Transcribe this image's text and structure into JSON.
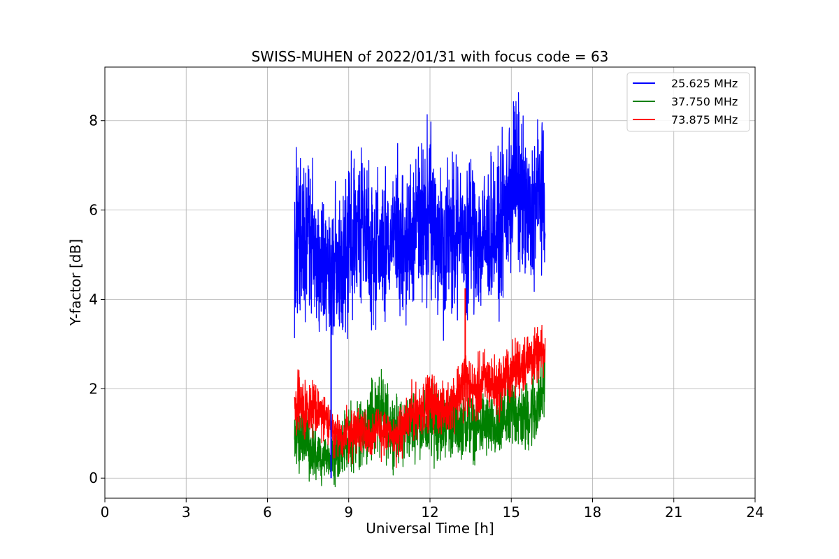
{
  "chart_data": {
    "type": "line",
    "title": "SWISS-MUHEN of 2022/01/31 with focus code = 63",
    "xlabel": "Universal Time [h]",
    "ylabel": "Y-factor [dB]",
    "xlim": [
      0,
      24
    ],
    "ylim": [
      -0.45,
      9.2
    ],
    "xticks": [
      0,
      3,
      6,
      9,
      12,
      15,
      18,
      21,
      24
    ],
    "xtick_labels": [
      "0",
      "3",
      "6",
      "9",
      "12",
      "15",
      "18",
      "21",
      "24"
    ],
    "yticks": [
      0,
      2,
      4,
      6,
      8
    ],
    "ytick_labels": [
      "0",
      "2",
      "4",
      "6",
      "8"
    ],
    "grid": true,
    "legend_position": "top-right",
    "series": [
      {
        "name": "25.625 MHz",
        "color": "#0000ff",
        "x": [
          7.0,
          7.2,
          7.4,
          7.6,
          7.8,
          8.0,
          8.2,
          8.35,
          8.5,
          8.7,
          8.9,
          9.1,
          9.3,
          9.5,
          9.7,
          9.9,
          10.1,
          10.3,
          10.5,
          10.7,
          10.9,
          11.1,
          11.3,
          11.5,
          11.7,
          11.9,
          12.1,
          12.3,
          12.5,
          12.7,
          12.9,
          13.1,
          13.3,
          13.5,
          13.7,
          13.9,
          14.1,
          14.3,
          14.5,
          14.7,
          14.9,
          15.1,
          15.3,
          15.5,
          15.7,
          15.9,
          16.1,
          16.25
        ],
        "y": [
          5.2,
          5.5,
          5.0,
          5.6,
          4.8,
          5.1,
          4.6,
          4.4,
          4.9,
          4.7,
          5.0,
          5.4,
          5.6,
          5.9,
          5.3,
          5.1,
          5.5,
          4.9,
          5.2,
          5.6,
          5.3,
          4.9,
          5.4,
          5.6,
          5.8,
          6.0,
          5.7,
          5.4,
          5.2,
          5.5,
          5.6,
          5.4,
          5.3,
          5.7,
          5.5,
          5.2,
          5.4,
          5.6,
          5.4,
          5.8,
          6.2,
          6.8,
          6.5,
          6.0,
          5.6,
          6.2,
          6.5,
          5.5
        ],
        "amp": [
          1.5,
          1.6,
          1.4,
          1.5,
          1.3,
          1.5,
          1.4,
          1.3,
          1.4,
          1.5,
          1.4,
          1.5,
          1.6,
          1.7,
          1.6,
          1.5,
          1.6,
          1.5,
          1.4,
          1.5,
          1.5,
          1.4,
          1.5,
          1.6,
          1.7,
          1.8,
          1.6,
          1.6,
          1.5,
          1.5,
          1.6,
          1.5,
          1.4,
          1.5,
          1.6,
          1.5,
          1.5,
          1.5,
          1.4,
          1.5,
          1.7,
          1.8,
          1.7,
          1.6,
          1.5,
          1.6,
          1.6,
          1.3
        ]
      },
      {
        "name": "37.750 MHz",
        "color": "#008000",
        "x": [
          7.0,
          7.2,
          7.4,
          7.6,
          7.8,
          8.0,
          8.2,
          8.35,
          8.5,
          8.7,
          8.9,
          9.1,
          9.3,
          9.5,
          9.7,
          9.9,
          10.1,
          10.3,
          10.5,
          10.7,
          10.9,
          11.1,
          11.3,
          11.5,
          11.7,
          11.9,
          12.1,
          12.3,
          12.5,
          12.7,
          12.9,
          13.1,
          13.3,
          13.5,
          13.7,
          13.9,
          14.1,
          14.3,
          14.5,
          14.7,
          14.9,
          15.1,
          15.3,
          15.5,
          15.7,
          15.9,
          16.1,
          16.25
        ],
        "y": [
          1.0,
          0.9,
          0.8,
          0.7,
          0.6,
          0.5,
          0.5,
          0.4,
          0.5,
          0.6,
          0.8,
          0.9,
          1.0,
          1.1,
          1.2,
          1.3,
          1.4,
          1.3,
          1.2,
          1.1,
          1.0,
          1.1,
          1.2,
          1.3,
          1.2,
          1.1,
          1.2,
          1.3,
          1.2,
          1.3,
          1.2,
          1.2,
          1.3,
          1.2,
          1.1,
          1.2,
          1.2,
          1.1,
          1.0,
          1.3,
          1.4,
          1.5,
          1.4,
          1.3,
          1.5,
          1.6,
          1.8,
          2.3
        ],
        "amp": [
          0.8,
          0.7,
          0.7,
          0.6,
          0.6,
          0.5,
          0.5,
          0.4,
          0.5,
          0.5,
          0.6,
          0.6,
          0.7,
          0.8,
          0.8,
          0.8,
          0.9,
          0.8,
          0.7,
          0.7,
          0.6,
          0.7,
          0.7,
          0.7,
          0.6,
          0.7,
          0.7,
          0.8,
          0.7,
          0.7,
          0.7,
          0.6,
          0.7,
          0.7,
          0.6,
          0.7,
          0.7,
          0.6,
          0.6,
          0.7,
          0.8,
          0.8,
          0.7,
          0.7,
          0.8,
          0.8,
          0.8,
          0.8
        ]
      },
      {
        "name": "73.875 MHz",
        "color": "#ff0000",
        "x": [
          7.0,
          7.2,
          7.4,
          7.6,
          7.8,
          8.0,
          8.2,
          8.35,
          8.5,
          8.7,
          8.9,
          9.1,
          9.3,
          9.5,
          9.7,
          9.9,
          10.1,
          10.3,
          10.5,
          10.7,
          10.9,
          11.1,
          11.3,
          11.5,
          11.7,
          11.9,
          12.1,
          12.3,
          12.5,
          12.7,
          12.9,
          13.1,
          13.3,
          13.5,
          13.7,
          13.9,
          14.1,
          14.3,
          14.5,
          14.7,
          14.9,
          15.1,
          15.3,
          15.5,
          15.7,
          15.9,
          16.1,
          16.25
        ],
        "y": [
          1.7,
          1.6,
          1.5,
          1.6,
          1.5,
          1.4,
          1.3,
          1.0,
          0.9,
          0.9,
          1.0,
          1.0,
          1.1,
          1.1,
          1.0,
          1.0,
          1.1,
          1.0,
          0.9,
          0.9,
          1.0,
          1.2,
          1.4,
          1.5,
          1.6,
          1.7,
          1.7,
          1.6,
          1.5,
          1.6,
          1.8,
          2.0,
          2.2,
          2.0,
          1.9,
          2.1,
          2.2,
          2.1,
          2.0,
          2.2,
          2.3,
          2.4,
          2.5,
          2.6,
          2.7,
          2.7,
          2.8,
          2.7
        ],
        "amp": [
          0.6,
          0.6,
          0.6,
          0.6,
          0.6,
          0.5,
          0.6,
          0.5,
          0.5,
          0.5,
          0.6,
          0.5,
          0.5,
          0.6,
          0.5,
          0.5,
          0.5,
          0.5,
          0.5,
          0.5,
          0.5,
          0.5,
          0.6,
          0.5,
          0.6,
          0.5,
          0.6,
          0.5,
          0.5,
          0.5,
          0.6,
          0.6,
          0.7,
          0.6,
          0.6,
          0.7,
          0.6,
          0.6,
          0.6,
          0.6,
          0.6,
          0.6,
          0.6,
          0.6,
          0.6,
          0.5,
          0.5,
          0.5
        ]
      }
    ],
    "spikes": [
      {
        "series": "25.625 MHz",
        "x": 8.35,
        "y_min": 0.0,
        "y_max": 4.3
      },
      {
        "series": "73.875 MHz",
        "x": 13.3,
        "y_min": 1.5,
        "y_max": 4.25
      }
    ]
  }
}
